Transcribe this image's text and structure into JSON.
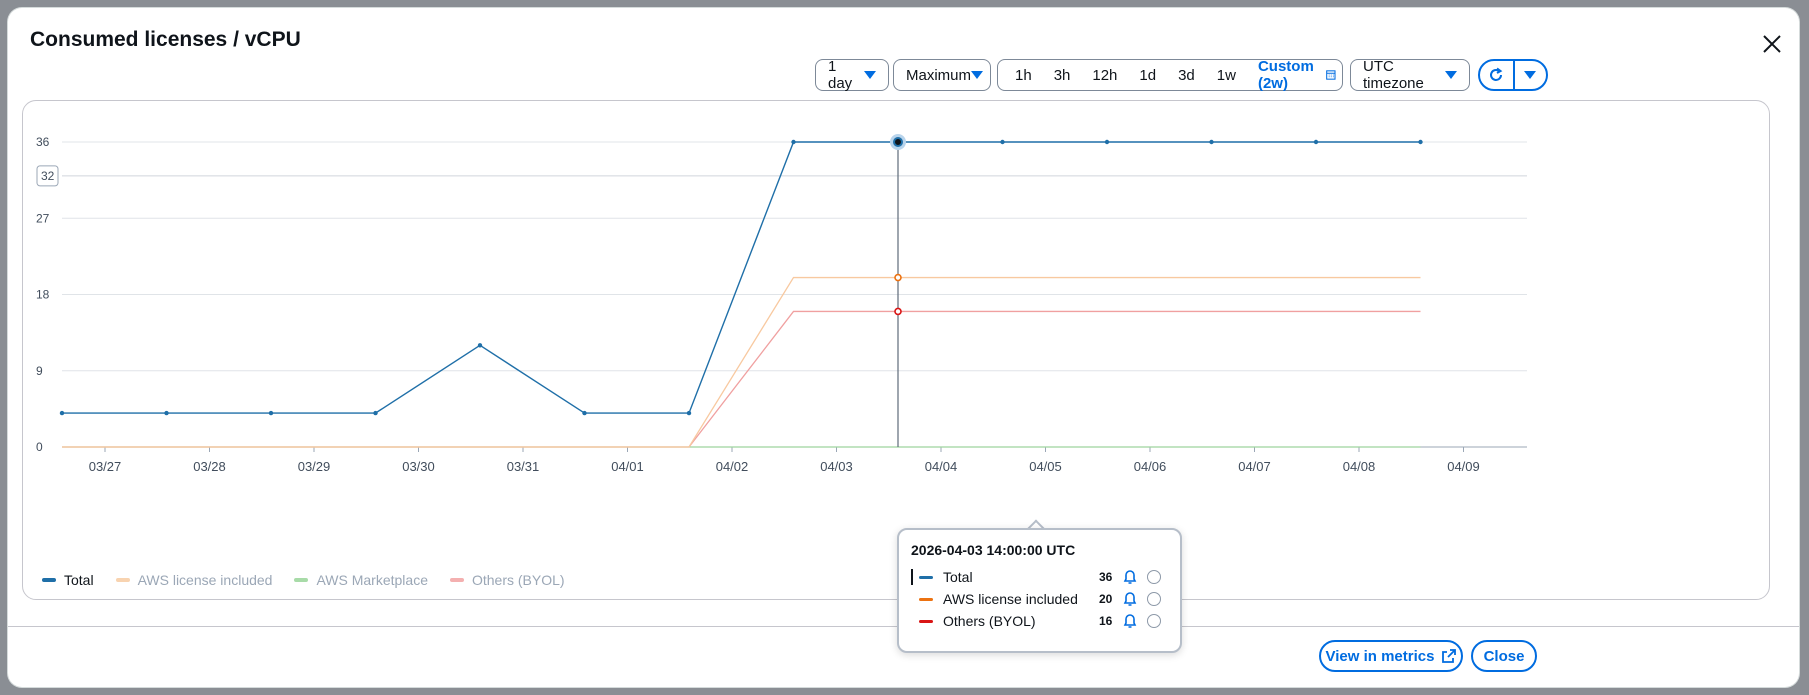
{
  "modal": {
    "title": "Consumed licenses / vCPU"
  },
  "controls": {
    "period": "1 day",
    "statistic": "Maximum",
    "ranges": [
      "1h",
      "3h",
      "12h",
      "1d",
      "3d",
      "1w"
    ],
    "custom": "Custom (2w)",
    "timezone": "UTC timezone"
  },
  "crosshair_label": "32",
  "chart_data": {
    "type": "line",
    "x": [
      "03/26 14:00",
      "03/27 14:00",
      "03/28 14:00",
      "03/29 14:00",
      "03/30 14:00",
      "03/31 14:00",
      "04/01 14:00",
      "04/02 14:00",
      "04/03 14:00",
      "04/04 14:00",
      "04/05 14:00",
      "04/06 14:00",
      "04/07 14:00",
      "04/08 14:00"
    ],
    "x_ticks": [
      "03/27",
      "03/28",
      "03/29",
      "03/30",
      "03/31",
      "04/01",
      "04/02",
      "04/03",
      "04/04",
      "04/05",
      "04/06",
      "04/07",
      "04/08",
      "04/09"
    ],
    "y_ticks": [
      "0",
      "9",
      "18",
      "27",
      "36"
    ],
    "ylim": [
      0,
      36
    ],
    "series": [
      {
        "name": "Total",
        "color": "#1f6fa8",
        "values": [
          4,
          4,
          4,
          4,
          12,
          4,
          4,
          36,
          36,
          36,
          36,
          36,
          36,
          36
        ]
      },
      {
        "name": "AWS license included",
        "color": "#f8c9a0",
        "values": [
          0,
          0,
          0,
          0,
          0,
          0,
          0,
          20,
          20,
          20,
          20,
          20,
          20,
          20
        ]
      },
      {
        "name": "AWS Marketplace",
        "color": "#9ed39e",
        "values": [
          0,
          0,
          0,
          0,
          0,
          0,
          0,
          0,
          0,
          0,
          0,
          0,
          0,
          0
        ]
      },
      {
        "name": "Others (BYOL)",
        "color": "#f0a0a0",
        "values": [
          0,
          0,
          0,
          0,
          0,
          0,
          0,
          16,
          16,
          16,
          16,
          16,
          16,
          16
        ]
      }
    ],
    "legend": [
      "Total",
      "AWS license included",
      "AWS Marketplace",
      "Others (BYOL)"
    ]
  },
  "tooltip": {
    "timestamp": "2026-04-03 14:00:00 UTC",
    "rows": [
      {
        "name": "Total",
        "value": "36",
        "color": "#1f6fa8"
      },
      {
        "name": "AWS license included",
        "value": "20",
        "color": "#ec7211"
      },
      {
        "name": "Others (BYOL)",
        "value": "16",
        "color": "#d91515"
      }
    ]
  },
  "footer": {
    "view_metrics": "View in metrics",
    "close": "Close"
  }
}
